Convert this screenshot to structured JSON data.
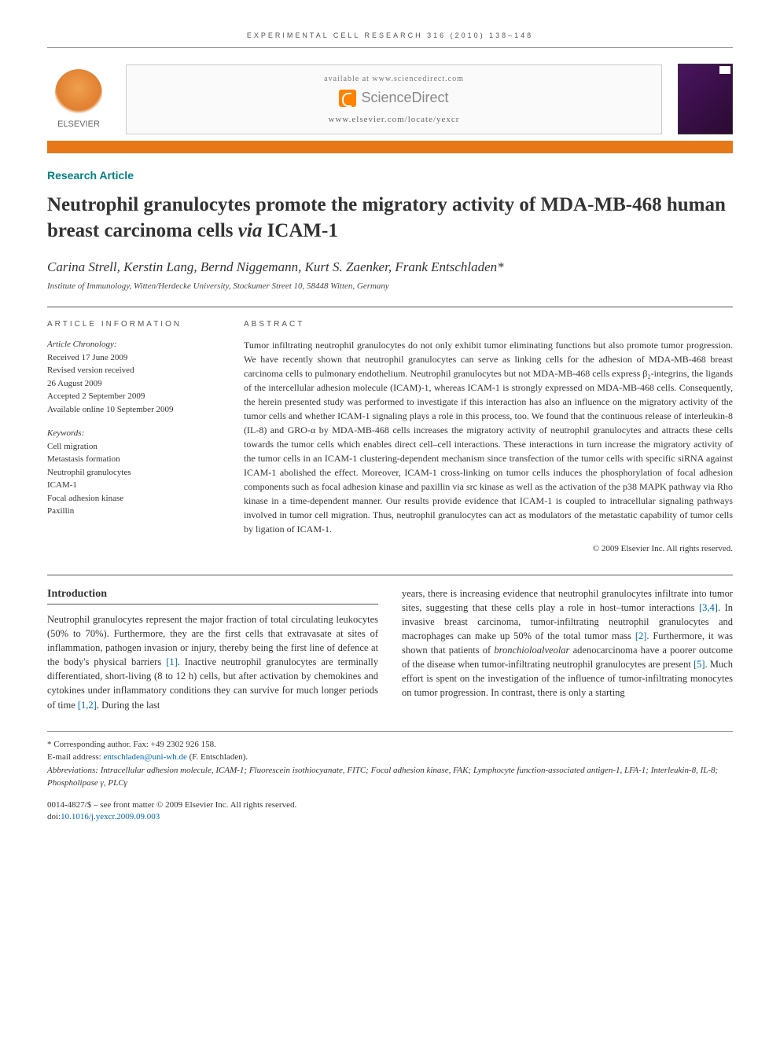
{
  "running_header": "EXPERIMENTAL CELL RESEARCH 316 (2010) 138–148",
  "masthead": {
    "publisher": "ELSEVIER",
    "available_at": "available at www.sciencedirect.com",
    "sd_name": "ScienceDirect",
    "journal_url": "www.elsevier.com/locate/yexcr"
  },
  "article_type": "Research Article",
  "title_plain": "Neutrophil granulocytes promote the migratory activity of MDA-MB-468 human breast carcinoma cells via ICAM-1",
  "title_html": "Neutrophil granulocytes promote the migratory activity of MDA-MB-468 human breast carcinoma cells <em>via</em> ICAM-1",
  "authors": "Carina Strell, Kerstin Lang, Bernd Niggemann, Kurt S. Zaenker, Frank Entschladen*",
  "affiliation": "Institute of Immunology, Witten/Herdecke University, Stockumer Street 10, 58448 Witten, Germany",
  "article_info": {
    "heading": "ARTICLE INFORMATION",
    "chronology_label": "Article Chronology:",
    "received": "Received 17 June 2009",
    "revised1": "Revised version received",
    "revised2": "26 August 2009",
    "accepted": "Accepted 2 September 2009",
    "online": "Available online 10 September 2009",
    "keywords_label": "Keywords:",
    "keywords": [
      "Cell migration",
      "Metastasis formation",
      "Neutrophil granulocytes",
      "ICAM-1",
      "Focal adhesion kinase",
      "Paxillin"
    ]
  },
  "abstract": {
    "heading": "ABSTRACT",
    "text": "Tumor infiltrating neutrophil granulocytes do not only exhibit tumor eliminating functions but also promote tumor progression. We have recently shown that neutrophil granulocytes can serve as linking cells for the adhesion of MDA-MB-468 breast carcinoma cells to pulmonary endothelium. Neutrophil granulocytes but not MDA-MB-468 cells express β₂-integrins, the ligands of the intercellular adhesion molecule (ICAM)-1, whereas ICAM-1 is strongly expressed on MDA-MB-468 cells. Consequently, the herein presented study was performed to investigate if this interaction has also an influence on the migratory activity of the tumor cells and whether ICAM-1 signaling plays a role in this process, too. We found that the continuous release of interleukin-8 (IL-8) and GRO-α by MDA-MB-468 cells increases the migratory activity of neutrophil granulocytes and attracts these cells towards the tumor cells which enables direct cell–cell interactions. These interactions in turn increase the migratory activity of the tumor cells in an ICAM-1 clustering-dependent mechanism since transfection of the tumor cells with specific siRNA against ICAM-1 abolished the effect. Moreover, ICAM-1 cross-linking on tumor cells induces the phosphorylation of focal adhesion components such as focal adhesion kinase and paxillin via src kinase as well as the activation of the p38 MAPK pathway via Rho kinase in a time-dependent manner. Our results provide evidence that ICAM-1 is coupled to intracellular signaling pathways involved in tumor cell migration. Thus, neutrophil granulocytes can act as modulators of the metastatic capability of tumor cells by ligation of ICAM-1.",
    "copyright": "© 2009 Elsevier Inc. All rights reserved."
  },
  "intro": {
    "heading": "Introduction",
    "col1": "Neutrophil granulocytes represent the major fraction of total circulating leukocytes (50% to 70%). Furthermore, they are the first cells that extravasate at sites of inflammation, pathogen invasion or injury, thereby being the first line of defence at the body's physical barriers [1]. Inactive neutrophil granulocytes are terminally differentiated, short-living (8 to 12 h) cells, but after activation by chemokines and cytokines under inflammatory conditions they can survive for much longer periods of time [1,2]. During the last",
    "col2": "years, there is increasing evidence that neutrophil granulocytes infiltrate into tumor sites, suggesting that these cells play a role in host–tumor interactions [3,4]. In invasive breast carcinoma, tumor-infiltrating neutrophil granulocytes and macrophages can make up 50% of the total tumor mass [2]. Furthermore, it was shown that patients of bronchioloalveolar adenocarcinoma have a poorer outcome of the disease when tumor-infiltrating neutrophil granulocytes are present [5]. Much effort is spent on the investigation of the influence of tumor-infiltrating monocytes on tumor progression. In contrast, there is only a starting"
  },
  "footnotes": {
    "corresponding": "* Corresponding author. Fax: +49 2302 926 158.",
    "email_label": "E-mail address: ",
    "email": "entschladen@uni-wh.de",
    "email_suffix": " (F. Entschladen).",
    "abbrev": "Abbreviations: Intracellular adhesion molecule, ICAM-1; Fluorescein isothiocyanate, FITC; Focal adhesion kinase, FAK; Lymphocyte function-associated antigen-1, LFA-1; Interleukin-8, IL-8; Phospholipase γ, PLCγ"
  },
  "copyright_footer": {
    "line1": "0014-4827/$ – see front matter © 2009 Elsevier Inc. All rights reserved.",
    "doi_label": "doi:",
    "doi": "10.1016/j.yexcr.2009.09.003"
  },
  "colors": {
    "orange_bar": "#e67817",
    "teal_accent": "#008080",
    "link": "#0066aa",
    "sd_orange": "#ff8200",
    "text": "#333333",
    "rule": "#555555"
  }
}
